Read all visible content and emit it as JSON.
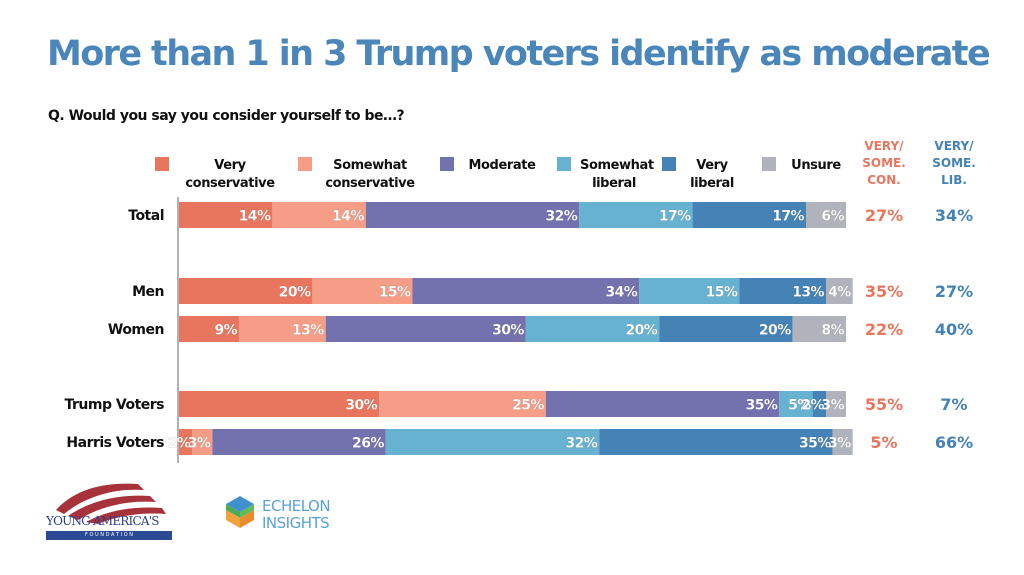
{
  "title": "More than 1 in 3 Trump voters identify as moderate",
  "question": "Q. Would you say you consider yourself to be…?",
  "legend": [
    {
      "label": "Very\nconservative",
      "color": "#e8765f"
    },
    {
      "label": "Somewhat\nconservative",
      "color": "#f59d87"
    },
    {
      "label": "Moderate",
      "color": "#7472ae"
    },
    {
      "label": "Somewhat\nliberal",
      "color": "#66b2d0"
    },
    {
      "label": "Very\nliberal",
      "color": "#4582b6"
    },
    {
      "label": "Unsure",
      "color": "#b0b3bb"
    }
  ],
  "columns": {
    "con": {
      "label": "VERY/\nSOME.\nCON.",
      "color": "#e8765f"
    },
    "lib": {
      "label": "VERY/\nSOME.\nLIB.",
      "color": "#4582b6"
    }
  },
  "logos": {
    "yaf_name": "YOUNG AMERICA'S",
    "yaf_sub": "F O U N D A T I O N",
    "echelon_line1": "ECHELON",
    "echelon_line2": "INSIGHTS"
  },
  "chart_data": {
    "type": "bar",
    "orientation": "horizontal",
    "stacked": true,
    "title": "More than 1 in 3 Trump voters identify as moderate",
    "subtitle": "Q. Would you say you consider yourself to be…?",
    "xlabel": "",
    "ylabel": "",
    "xlim": [
      0,
      100
    ],
    "grid": false,
    "legend_position": "top",
    "categories": [
      "Total",
      "Men",
      "Women",
      "Trump Voters",
      "Harris Voters"
    ],
    "series": [
      {
        "name": "Very conservative",
        "values": [
          14,
          20,
          9,
          30,
          2
        ]
      },
      {
        "name": "Somewhat conservative",
        "values": [
          14,
          15,
          13,
          25,
          3
        ]
      },
      {
        "name": "Moderate",
        "values": [
          32,
          34,
          30,
          35,
          26
        ]
      },
      {
        "name": "Somewhat liberal",
        "values": [
          17,
          15,
          20,
          5,
          32
        ]
      },
      {
        "name": "Very liberal",
        "values": [
          17,
          13,
          20,
          2,
          35
        ]
      },
      {
        "name": "Unsure",
        "values": [
          6,
          4,
          8,
          3,
          3
        ]
      }
    ],
    "summary": {
      "very_some_con": [
        27,
        35,
        22,
        55,
        5
      ],
      "very_some_lib": [
        34,
        27,
        40,
        7,
        66
      ]
    }
  }
}
